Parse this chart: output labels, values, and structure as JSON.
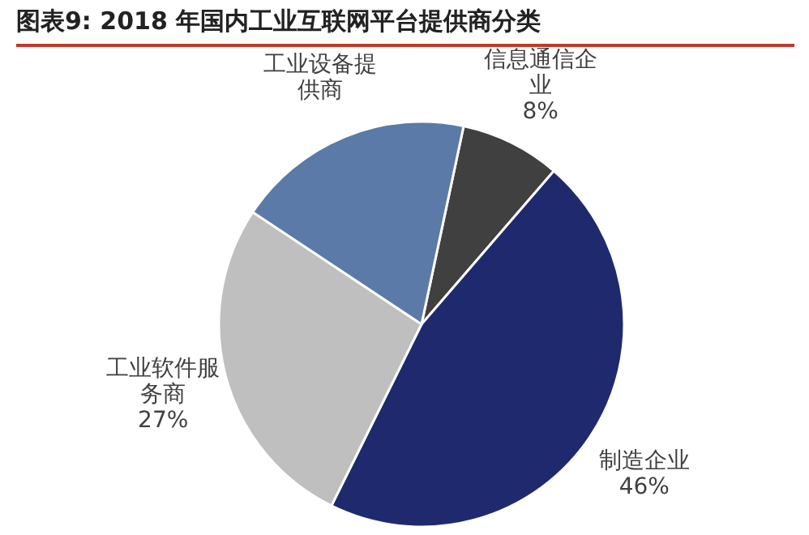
{
  "chart_data": {
    "type": "pie",
    "title": "图表9:   2018 年国内工业互联网平台提供商分类",
    "categories": [
      "信息通信企业",
      "制造企业",
      "工业软件服务商",
      "工业设备提供商"
    ],
    "values": [
      8,
      46,
      27,
      19
    ],
    "value_labels": [
      "8%",
      "46%",
      "27%",
      null
    ],
    "colors": [
      "#404040",
      "#1f2a6e",
      "#bfbfbf",
      "#5b7aa8"
    ]
  }
}
